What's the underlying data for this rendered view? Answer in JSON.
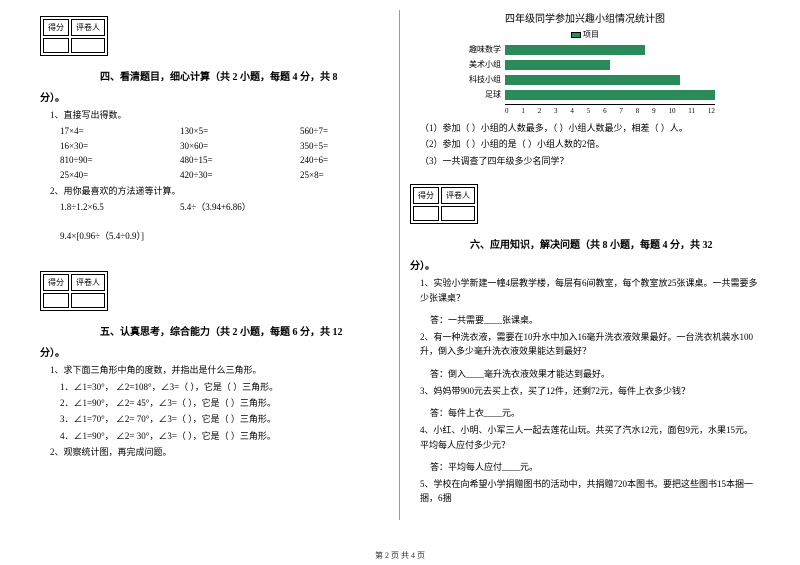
{
  "scorebox": {
    "c1": "得分",
    "c2": "评卷人"
  },
  "sec4": {
    "title": "四、看清题目，细心计算（共 2 小题，每题 4 分，共 8",
    "title2": "分）。",
    "q1": "1、直接写出得数。",
    "rows": [
      [
        "17×4=",
        "130×5=",
        "560÷7="
      ],
      [
        "16×30=",
        "30×60=",
        "350÷5="
      ],
      [
        "810÷90=",
        "480÷15=",
        "240÷6="
      ],
      [
        "25×40=",
        "420÷30=",
        "25×8="
      ]
    ],
    "q2": "2、用你最喜欢的方法递等计算。",
    "q2a": "1.8÷1.2×6.5",
    "q2b": "5.4÷（3.94+6.86）",
    "q2c": "9.4×[0.96÷（5.4÷0.9）]"
  },
  "sec5": {
    "title": "五、认真思考，综合能力（共 2 小题，每题 6 分，共 12",
    "title2": "分）。",
    "q1": "1、求下面三角形中角的度数，并指出是什么三角形。",
    "tri": [
      "1．∠1=30°， ∠2=108°，∠3=（   ），它是（     ）三角形。",
      "2．∠1=90°， ∠2= 45°，∠3=（   ），它是（     ）三角形。",
      "3．∠1=70°， ∠2= 70°，∠3=（   ），它是（     ）三角形。",
      "4．∠1=90°， ∠2= 30°，∠3=（   ），它是（     ）三角形。"
    ],
    "q2": "2、观察统计图，再完成问题。"
  },
  "chart": {
    "title": "四年级同学参加兴趣小组情况统计图",
    "legend": "项目",
    "labels": [
      "趣味数学",
      "美术小组",
      "科技小组",
      "足球"
    ],
    "values": [
      8,
      6,
      10,
      12
    ],
    "max": 12,
    "ticks": [
      "0",
      "1",
      "2",
      "3",
      "4",
      "5",
      "6",
      "7",
      "8",
      "9",
      "10",
      "11",
      "12"
    ],
    "bar_color": "#2a8a5a",
    "q1": "（1）参加（     ）小组的人数最多，（     ）小组人数最少，相差（     ）人。",
    "q2": "（2）参加（     ）小组的是（     ）小组人数的2倍。",
    "q3": "（3）一共调查了四年级多少名同学？"
  },
  "sec6": {
    "title": "六、应用知识，解决问题（共 8 小题，每题 4 分，共 32",
    "title2": "分）。",
    "q1": "1、实验小学新建一幢4层教学楼，每层有6间教室，每个教室放25张课桌。一共需要多少张课桌？",
    "a1": "答：一共需要____张课桌。",
    "q2": "2、有一种洗衣液，需要在10升水中加入16毫升洗衣液效果最好。一台洗衣机装水100升，倒入多少毫升洗衣液效果能达到最好？",
    "a2": "答：倒入____毫升洗衣液效果才能达到最好。",
    "q3": "3、妈妈带900元去买上衣，买了12件，还剩72元，每件上衣多少钱？",
    "a3": "答：每件上衣____元。",
    "q4": "4、小红、小明、小军三人一起去莲花山玩。共买了汽水12元，面包9元，水果15元。平均每人应付多少元？",
    "a4": "答：平均每人应付____元。",
    "q5": "5、学校在向希望小学捐赠图书的活动中，共捐赠720本图书。要把这些图书15本捆一捆，6捆"
  },
  "footer": "第 2 页 共 4 页"
}
